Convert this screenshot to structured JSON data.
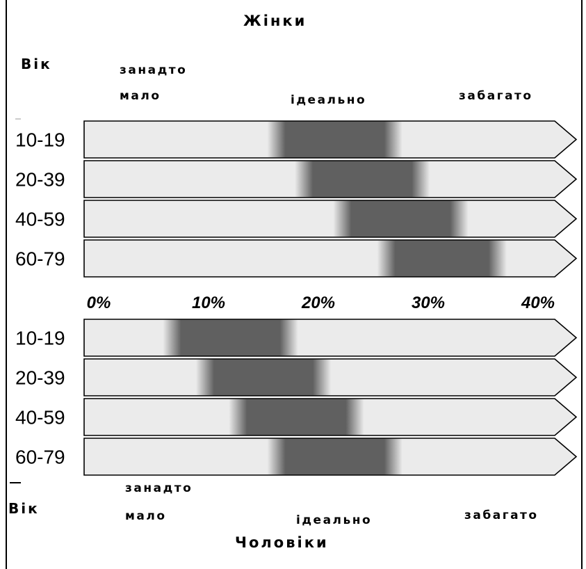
{
  "chart_data": [
    {
      "type": "bar",
      "title": "Жінки",
      "age_label": "Вік",
      "categories": [
        "10-19",
        "20-39",
        "40-59",
        "60-79"
      ],
      "series": [
        {
          "values": [
            [
              17,
              26
            ],
            [
              19.5,
              28.5
            ],
            [
              23,
              32
            ],
            [
              27,
              35.5
            ]
          ]
        }
      ],
      "bands": {
        "low": [
          "занадто",
          "мало"
        ],
        "ideal": "ідеально",
        "high": "забагато"
      },
      "xlim": [
        0,
        44
      ],
      "xticks": [
        "0%",
        "10%",
        "20%",
        "30%",
        "40%"
      ],
      "xtick_values": [
        0,
        10,
        20,
        30,
        40
      ],
      "grid": false,
      "legend": "none"
    },
    {
      "type": "bar",
      "title": "Чоловіки",
      "age_label": "Вік",
      "categories": [
        "10-19",
        "20-39",
        "40-59",
        "60-79"
      ],
      "series": [
        {
          "values": [
            [
              7.5,
              16.5
            ],
            [
              10.5,
              19.5
            ],
            [
              13.5,
              22.5
            ],
            [
              17,
              26
            ]
          ]
        }
      ],
      "bands": {
        "low": [
          "занадто",
          "мало"
        ],
        "ideal": "ідеально",
        "high": "забагато"
      },
      "xlim": [
        0,
        44
      ],
      "grid": false,
      "legend": "none"
    }
  ],
  "colors": {
    "arrow_fill": "#ebebeb",
    "ideal_fill": "#606060",
    "outline": "#000000"
  }
}
